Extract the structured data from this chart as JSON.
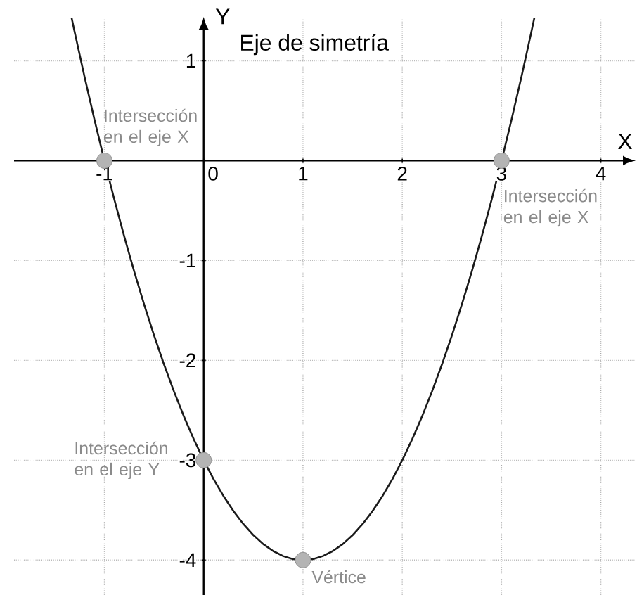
{
  "chart_data": {
    "type": "line",
    "xlabel": "X",
    "ylabel": "Y",
    "annotations": [
      "Eje de simetría",
      {
        "text": "Intersección en el eje X",
        "x": -1,
        "y": 0
      },
      {
        "text": "Intersección en el eje X",
        "x": 3,
        "y": 0
      },
      {
        "text": "Intersección en el eje Y",
        "x": 0,
        "y": -3
      },
      {
        "text": "Vértice",
        "x": 1,
        "y": -4
      }
    ],
    "series": [
      {
        "color": "#1a1a1a",
        "x": [
          -1.33,
          -1.3,
          -1.2,
          -1.1,
          -1,
          -0.9,
          -0.8,
          -0.7,
          -0.6,
          -0.5,
          -0.4,
          -0.3,
          -0.2,
          -0.1,
          0,
          0.1,
          0.2,
          0.3,
          0.4,
          0.5,
          0.6,
          0.7,
          0.8,
          0.9,
          1,
          1.1,
          1.2,
          1.3,
          1.4,
          1.5,
          1.6,
          1.7,
          1.8,
          1.9,
          2,
          2.1,
          2.2,
          2.3,
          2.4,
          2.5,
          2.6,
          2.7,
          2.8,
          2.9,
          3,
          3.1,
          3.2,
          3.3,
          3.33
        ],
        "values": [
          1.43,
          1.29,
          0.84,
          0.41,
          0,
          -0.39,
          -0.76,
          -1.11,
          -1.44,
          -1.75,
          -2.04,
          -2.31,
          -2.56,
          -2.79,
          -3,
          -3.19,
          -3.36,
          -3.51,
          -3.64,
          -3.75,
          -3.84,
          -3.91,
          -3.96,
          -3.99,
          -4,
          -3.99,
          -3.96,
          -3.91,
          -3.84,
          -3.75,
          -3.64,
          -3.51,
          -3.36,
          -3.19,
          -3,
          -2.79,
          -2.56,
          -2.31,
          -2.04,
          -1.75,
          -1.44,
          -1.11,
          -0.76,
          -0.39,
          0,
          0.41,
          0.84,
          1.29,
          1.43
        ]
      },
      {
        "type": "scatter",
        "color": "#b4b4b4",
        "marker": "circle",
        "x": [
          -1,
          3,
          0,
          1
        ],
        "values": [
          0,
          0,
          -3,
          -4
        ]
      }
    ],
    "xlim": [
      -1.91,
      4.35
    ],
    "ylim": [
      -4.35,
      1.44
    ],
    "xticks": [
      -1,
      0,
      1,
      2,
      3,
      4
    ],
    "yticks": [
      -4,
      -3,
      -2,
      -1,
      1
    ],
    "grid": true
  }
}
